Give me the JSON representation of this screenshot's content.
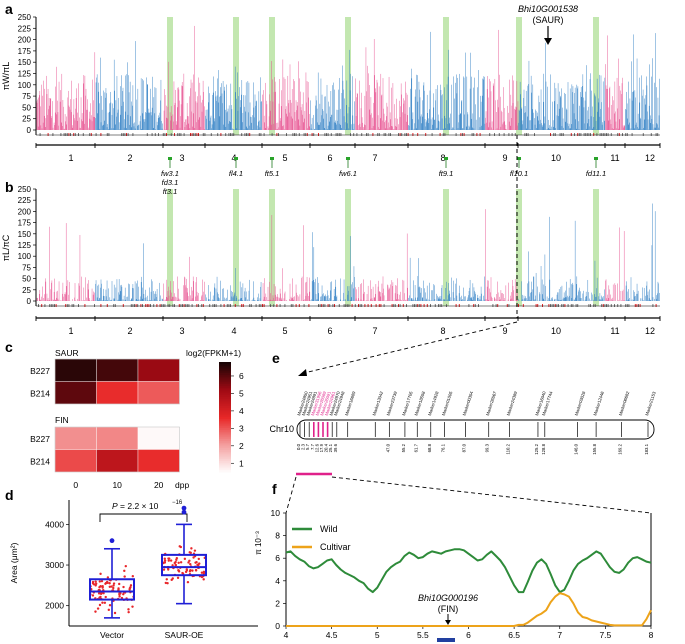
{
  "panels": {
    "a": "a",
    "b": "b",
    "c": "c",
    "d": "d",
    "e": "e",
    "f": "f"
  },
  "colors": {
    "pink": "#e64f8f",
    "blue": "#2e7ec4",
    "green_band": "#b8e3a2",
    "qtl_text": "#1f7a1f",
    "wild": "#2e8b3a",
    "cultivar": "#eda31a",
    "magenta": "#e0218a",
    "red": "#e8262a",
    "box_blue": "#1f1fd6",
    "navy": "#2240a0"
  },
  "chromosomes": [
    "1",
    "2",
    "3",
    "4",
    "5",
    "6",
    "7",
    "8",
    "9",
    "10",
    "11",
    "12"
  ],
  "panel_a": {
    "ylabel": "πW/πL",
    "yticks": [
      "0",
      "25",
      "50",
      "75",
      "100",
      "125",
      "150",
      "175",
      "200",
      "225",
      "250"
    ],
    "gene_label": "Bhi10G001538",
    "gene_sub": "(SAUR)",
    "qtl_labels": [
      {
        "id": "qtl-fw3",
        "lines": [
          "fw3.1",
          "fd3.1",
          "ft3.1"
        ]
      },
      {
        "id": "qtl-fl4",
        "lines": [
          "fl4.1"
        ]
      },
      {
        "id": "qtl-ft5",
        "lines": [
          "ft5.1"
        ]
      },
      {
        "id": "qtl-fw6",
        "lines": [
          "fw6.1"
        ]
      },
      {
        "id": "qtl-ft9",
        "lines": [
          "ft9.1"
        ]
      },
      {
        "id": "qtl-fl10",
        "lines": [
          "fl10.1"
        ]
      },
      {
        "id": "qtl-fd11",
        "lines": [
          "fd11.1"
        ]
      }
    ]
  },
  "panel_b": {
    "ylabel": "πL/πC",
    "yticks": [
      "0",
      "25",
      "50",
      "75",
      "100",
      "125",
      "150",
      "175",
      "200",
      "225",
      "250"
    ]
  },
  "panel_c": {
    "legend_title": "log2(FPKM+1)",
    "legend_ticks": [
      "1",
      "2",
      "3",
      "4",
      "5",
      "6"
    ],
    "saur_title": "SAUR",
    "fin_title": "FIN",
    "rows": [
      "B227",
      "B214"
    ],
    "cols": [
      "0",
      "10",
      "20"
    ],
    "xunit": "dpp",
    "saur_values": [
      [
        6.6,
        6.3,
        5.3
      ],
      [
        6.0,
        3.6,
        3.0
      ]
    ],
    "fin_values": [
      [
        2.3,
        2.4,
        0.6
      ],
      [
        3.2,
        4.6,
        3.6
      ]
    ]
  },
  "panel_d": {
    "ylabel": "Area (μm²)",
    "yticks": [
      "2000",
      "3000",
      "4000"
    ],
    "groups": [
      "Vector",
      "SAUR-OE"
    ],
    "pvalue_label": "P = 2.2 × 10",
    "pvalue_exp": "−16",
    "boxes": [
      {
        "name": "Vector",
        "q1": 2150,
        "median": 2350,
        "q3": 2650,
        "whisker_low": 1700,
        "whisker_high": 3400,
        "outliers": [
          3600
        ]
      },
      {
        "name": "SAUR-OE",
        "q1": 2750,
        "median": 2950,
        "q3": 3250,
        "whisker_low": 2050,
        "whisker_high": 4000,
        "outliers": [
          4300,
          4400
        ]
      }
    ]
  },
  "panel_e": {
    "chrom": "Chr10",
    "markers": [
      "Marker24850",
      "Marker24951",
      "Marker24891",
      "Marker31996",
      "Marker26089",
      "Marker26091",
      "Marker24961",
      "Marker24970",
      "Marker24948",
      "Marker16689",
      "Marker13042",
      "Marker23739",
      "Marker17705",
      "Marker18558",
      "Marker14928",
      "Marker01005",
      "Marker00354",
      "Marker26567",
      "Marker24389",
      "Marker16040",
      "Marker17744",
      "Marker03028",
      "Marker12446",
      "Marker06682",
      "Marker21153"
    ],
    "positions": [
      "0.0",
      "2.3",
      "5.7",
      "7.7",
      "12.6",
      "17.9",
      "20.4",
      "25.1",
      "39.6",
      "47.0",
      "55.2",
      "61.7",
      "68.8",
      "76.1",
      "87.0",
      "99.3",
      "110.2",
      "125.2",
      "128.8",
      "146.0",
      "155.8",
      "169.2",
      "183.1"
    ]
  },
  "chart_data": {
    "type": "line",
    "title": "",
    "xlabel": "",
    "ylabel": "π 10⁻³",
    "xlim": [
      4,
      8
    ],
    "ylim": [
      0,
      10
    ],
    "xticks": [
      "4",
      "4.5",
      "5",
      "5.5",
      "6",
      "6.5",
      "7",
      "7.5",
      "8"
    ],
    "yticks": [
      "0",
      "2",
      "4",
      "6",
      "8",
      "10"
    ],
    "legend": "top-left",
    "gene_label": "Bhi10G000196",
    "gene_sub": "(FIN)",
    "series": [
      {
        "name": "Wild",
        "x": [
          4.0,
          4.05,
          4.1,
          4.15,
          4.2,
          4.25,
          4.3,
          4.35,
          4.4,
          4.45,
          4.5,
          4.55,
          4.6,
          4.65,
          4.7,
          4.75,
          4.8,
          4.85,
          4.9,
          4.95,
          5.0,
          5.05,
          5.1,
          5.15,
          5.2,
          5.25,
          5.3,
          5.35,
          5.4,
          5.45,
          5.5,
          5.55,
          5.6,
          5.65,
          5.7,
          5.75,
          5.8,
          5.85,
          5.9,
          5.95,
          6.0,
          6.05,
          6.1,
          6.15,
          6.2,
          6.25,
          6.3,
          6.35,
          6.4,
          6.45,
          6.5,
          6.55,
          6.6,
          6.65,
          6.7,
          6.75,
          6.8,
          6.85,
          6.9,
          6.95,
          7.0,
          7.05,
          7.1,
          7.15,
          7.2,
          7.25,
          7.3,
          7.35,
          7.4,
          7.45,
          7.5,
          7.55,
          7.6,
          7.65,
          7.7,
          7.75,
          7.8,
          7.85,
          7.9,
          7.95,
          8.0
        ],
        "y": [
          6.5,
          6.6,
          6.2,
          5.9,
          5.7,
          5.3,
          5.1,
          5.2,
          5.5,
          5.8,
          5.9,
          5.4,
          5.0,
          4.7,
          4.5,
          4.3,
          4.0,
          3.8,
          3.3,
          3.0,
          3.4,
          4.1,
          4.8,
          5.2,
          5.5,
          5.7,
          6.2,
          6.5,
          6.3,
          6.0,
          6.1,
          6.4,
          6.6,
          6.5,
          6.4,
          6.6,
          6.7,
          6.8,
          6.8,
          6.7,
          6.4,
          6.1,
          5.8,
          5.9,
          6.3,
          6.6,
          6.2,
          5.8,
          5.2,
          4.4,
          3.6,
          3.0,
          3.0,
          3.9,
          4.9,
          5.6,
          5.9,
          5.5,
          4.6,
          3.6,
          3.0,
          3.2,
          4.0,
          4.9,
          5.5,
          5.8,
          6.0,
          6.3,
          6.6,
          6.4,
          5.8,
          5.2,
          4.8,
          4.7,
          5.0,
          5.6,
          6.0,
          6.1,
          5.9,
          5.7,
          5.6
        ]
      },
      {
        "name": "Cultivar",
        "x": [
          4.0,
          6.5,
          6.55,
          6.6,
          6.65,
          6.7,
          6.75,
          6.8,
          6.85,
          6.9,
          6.95,
          7.0,
          7.05,
          7.1,
          7.15,
          7.2,
          7.25,
          7.3,
          7.35,
          7.4,
          7.45,
          7.5,
          7.55,
          7.6,
          7.9,
          7.95,
          8.0
        ],
        "y": [
          0,
          0,
          0.1,
          0.1,
          0.3,
          0.6,
          0.9,
          1.1,
          1.4,
          2.1,
          2.6,
          2.9,
          2.8,
          2.6,
          2.0,
          1.2,
          0.8,
          0.7,
          0.5,
          0.4,
          0.3,
          0.2,
          0.1,
          0.05,
          0.05,
          0.6,
          1.4
        ]
      }
    ]
  }
}
